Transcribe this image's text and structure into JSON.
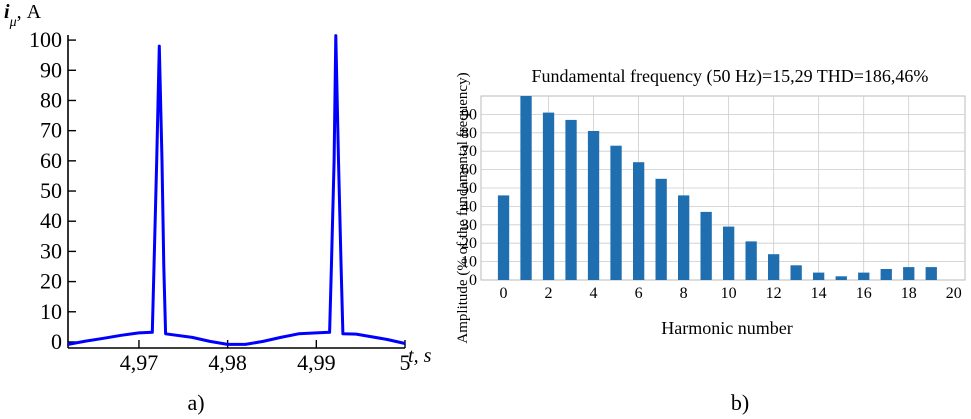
{
  "panels": {
    "a": {
      "caption": "a)"
    },
    "b": {
      "caption": "b)"
    }
  },
  "colors": {
    "line": "#0000ff",
    "bar": "#1f6fb0",
    "grid": "#cccccc"
  },
  "chart_data": [
    {
      "type": "line",
      "title": "",
      "ylabel": "i_μ, A",
      "ylabel_main": "i",
      "ylabel_sub": "μ",
      "ylabel_unit": ", A",
      "xlabel": "t, s",
      "xlabel_main": "t",
      "xlabel_unit": ", s",
      "xlim": [
        4.962,
        5.0
      ],
      "ylim": [
        -2,
        105
      ],
      "x_ticks": [
        4.97,
        4.98,
        4.99,
        5.0
      ],
      "x_tick_labels": [
        "4,97",
        "4,98",
        "4,99",
        "5"
      ],
      "y_ticks": [
        0,
        10,
        20,
        30,
        40,
        50,
        60,
        70,
        80,
        90,
        100
      ],
      "y_tick_labels": [
        "0",
        "10",
        "20",
        "30",
        "40",
        "50",
        "60",
        "70",
        "80",
        "90",
        "100"
      ],
      "grid": false,
      "series": [
        {
          "x": [
            4.962,
            4.964,
            4.966,
            4.968,
            4.97,
            4.9715,
            4.9717,
            4.972,
            4.9723,
            4.9726,
            4.9728,
            4.973,
            4.976,
            4.978,
            4.98,
            4.982,
            4.984,
            4.986,
            4.988,
            4.99,
            4.9915,
            4.9917,
            4.992,
            4.9922,
            4.9925,
            4.9928,
            4.993,
            4.9945,
            4.998,
            5.0
          ],
          "y": [
            -0.8,
            0.3,
            1.2,
            2.2,
            3.0,
            3.2,
            25,
            60,
            98,
            60,
            25,
            2.7,
            1.5,
            0.2,
            -0.8,
            -0.8,
            0.2,
            1.5,
            2.7,
            3.0,
            3.2,
            25,
            60,
            101.5,
            60,
            25,
            2.7,
            2.6,
            0.8,
            -0.5
          ]
        }
      ]
    },
    {
      "type": "bar",
      "title": "Fundamental frequency (50 Hz)=15,29 THD=186,46%",
      "xlabel": "Harmonic number",
      "ylabel": "Amplitude (% of the fundamental frequency)",
      "xlim": [
        -1,
        20.5
      ],
      "ylim": [
        0,
        100
      ],
      "x_ticks": [
        0,
        2,
        4,
        6,
        8,
        10,
        12,
        14,
        16,
        18,
        20
      ],
      "x_tick_labels": [
        "0",
        "2",
        "4",
        "6",
        "8",
        "10",
        "12",
        "14",
        "16",
        "18",
        "20"
      ],
      "y_ticks": [
        0,
        10,
        20,
        30,
        40,
        50,
        60,
        70,
        80,
        90
      ],
      "y_tick_labels": [
        "0",
        "10",
        "20",
        "30",
        "40",
        "50",
        "60",
        "70",
        "80",
        "90"
      ],
      "grid": true,
      "categories": [
        0,
        1,
        2,
        3,
        4,
        5,
        6,
        7,
        8,
        9,
        10,
        11,
        12,
        13,
        14,
        15,
        16,
        17,
        18,
        19
      ],
      "values": [
        46,
        100,
        91,
        87,
        81,
        73,
        64,
        55,
        46,
        37,
        29,
        21,
        14,
        8,
        4,
        2,
        4,
        6,
        7,
        7
      ]
    }
  ]
}
